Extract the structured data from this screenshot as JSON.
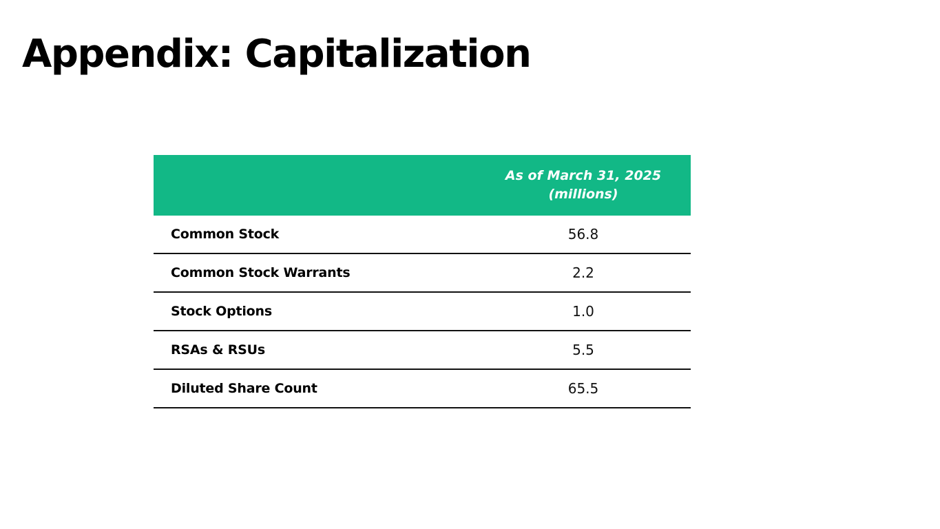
{
  "slide": {
    "title": "Appendix: Capitalization"
  },
  "table": {
    "header": {
      "line1": "As of March 31, 2025",
      "line2": "(millions)"
    },
    "rows": [
      {
        "label": "Common Stock",
        "value": "56.8"
      },
      {
        "label": "Common Stock Warrants",
        "value": "2.2"
      },
      {
        "label": "Stock Options",
        "value": "1.0"
      },
      {
        "label": "RSAs & RSUs",
        "value": "5.5"
      },
      {
        "label": "Diluted Share Count",
        "value": "65.5"
      }
    ]
  },
  "colors": {
    "header_bg": "#12b886",
    "header_text": "#ffffff",
    "row_border": "#111111",
    "title_text": "#000000"
  }
}
